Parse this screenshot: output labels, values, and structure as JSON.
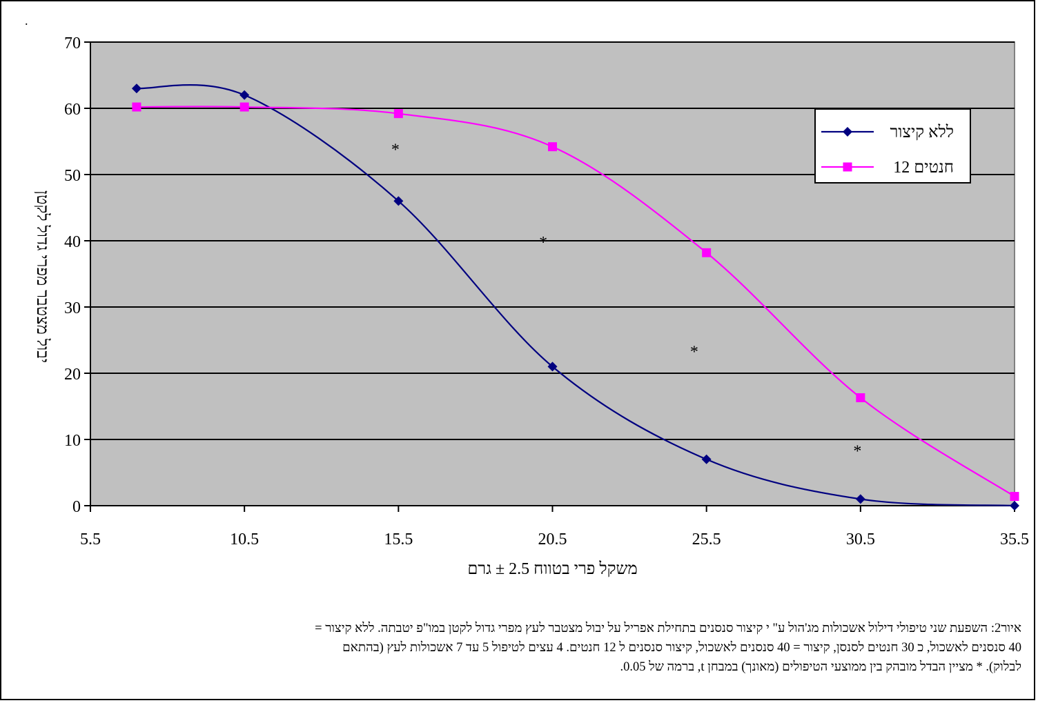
{
  "chart_data": {
    "type": "line",
    "title": "",
    "xlabel": "משקל פרי בטווח 2.5 ± גרם",
    "ylabel": "יבול מצטבר מפרי גדול לקטן",
    "xlim": [
      5.5,
      35.5
    ],
    "ylim": [
      0,
      70
    ],
    "xticks": [
      "5.5",
      "10.5",
      "15.5",
      "20.5",
      "25.5",
      "30.5",
      "35.5"
    ],
    "yticks": [
      "0",
      "10",
      "20",
      "30",
      "40",
      "50",
      "60",
      "70"
    ],
    "grid": "horizontal",
    "plot_background": "#c0c0c0",
    "legend_position": "top-right",
    "series": [
      {
        "name": "ללא קיצור",
        "color": "#000080",
        "marker": "diamond",
        "x": [
          7,
          10.5,
          15.5,
          20.5,
          25.5,
          30.5,
          35.5
        ],
        "y": [
          63,
          62,
          46,
          21,
          7,
          1,
          0
        ]
      },
      {
        "name": "12 חנטים",
        "color": "#ff00ff",
        "marker": "square",
        "x": [
          7,
          10.5,
          15.5,
          20.5,
          25.5,
          30.5,
          35.5
        ],
        "y": [
          60.2,
          60.2,
          59.2,
          54.2,
          38.2,
          16.3,
          1.4
        ]
      }
    ],
    "annotations": [
      {
        "text": "*",
        "x": 15.4,
        "y": 54
      },
      {
        "text": "*",
        "x": 20.2,
        "y": 40
      },
      {
        "text": "*",
        "x": 25.1,
        "y": 23.5
      },
      {
        "text": "*",
        "x": 30.4,
        "y": 8.5
      }
    ]
  },
  "corner_mark": ".",
  "caption": {
    "line1": "איור2: השפעת שני טיפולי דילול אשכולות מג'הול ע\" י קיצור סנסנים בתחילת אפריל על יבול מצטבר לעץ מפרי גדול לקטן במו\"פ יטבתה.  ללא קיצור =",
    "line2": "40 סנסנים לאשכול, כ 30 חנטים לסנסן, קיצור = 40 סנסנים לאשכול, קיצור סנסנים ל 12 חנטים. 4 עצים לטיפול 5 עד 7 אשכולות לעץ (בהתאם",
    "line3": "לבלוק). * מציין הבדל מובהק בין ממוצעי הטיפולים (מאונך) במבחן t, ברמה של 0.05."
  }
}
